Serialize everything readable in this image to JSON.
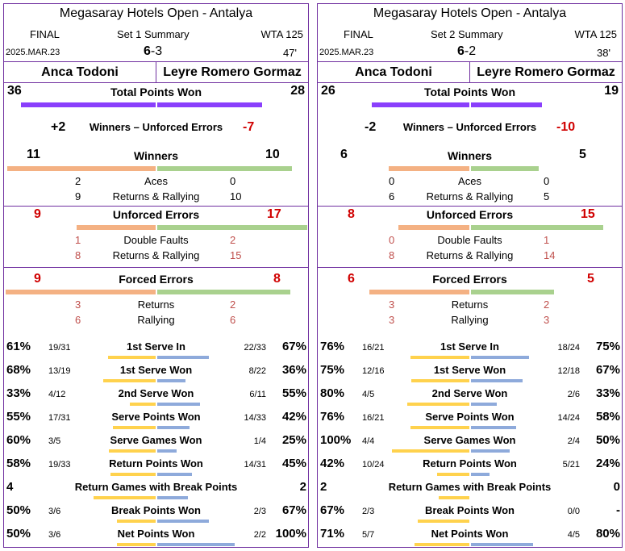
{
  "panels": [
    {
      "title": "Megasaray Hotels Open - Antalya",
      "round": "FINAL",
      "set_label": "Set 1 Summary",
      "tier": "WTA 125",
      "date": "2025.MAR.23",
      "score_p1": "6",
      "score_sep": "-",
      "score_p2": "3",
      "minutes": "47'",
      "player1": "Anca Todoni",
      "player2": "Leyre Romero Gormaz",
      "total_points_label": "Total Points Won",
      "total_points_p1": "36",
      "total_points_p2": "28",
      "winners_ue_label": "Winners – Unforced Errors",
      "winners_ue_p1": "+2",
      "winners_ue_p2": "-7",
      "winners_label": "Winners",
      "winners_p1": "11",
      "winners_p2": "10",
      "aces_label": "Aces",
      "aces_p1": "2",
      "aces_p2": "0",
      "w_rally_label": "Returns & Rallying",
      "w_rally_p1": "9",
      "w_rally_p2": "10",
      "ue_label": "Unforced Errors",
      "ue_p1": "9",
      "ue_p2": "17",
      "df_label": "Double Faults",
      "df_p1": "1",
      "df_p2": "2",
      "ue_rally_label": "Returns & Rallying",
      "ue_rally_p1": "8",
      "ue_rally_p2": "15",
      "fe_label": "Forced Errors",
      "fe_p1": "9",
      "fe_p2": "8",
      "fe_returns_label": "Returns",
      "fe_returns_p1": "3",
      "fe_returns_p2": "2",
      "fe_rally_label": "Rallying",
      "fe_rally_p1": "6",
      "fe_rally_p2": "6",
      "bars": {
        "total_points": [
          36,
          28
        ],
        "winners": [
          11,
          10
        ],
        "ue": [
          9,
          17
        ],
        "fe": [
          9,
          8
        ]
      },
      "stats": [
        {
          "label": "1st Serve In",
          "p1_pct": "61%",
          "p1_frac": "19/31",
          "p2_frac": "22/33",
          "p2_pct": "67%",
          "v1": 0.61,
          "v2": 0.67
        },
        {
          "label": "1st Serve Won",
          "p1_pct": "68%",
          "p1_frac": "13/19",
          "p2_frac": "8/22",
          "p2_pct": "36%",
          "v1": 0.68,
          "v2": 0.36
        },
        {
          "label": "2nd Serve Won",
          "p1_pct": "33%",
          "p1_frac": "4/12",
          "p2_frac": "6/11",
          "p2_pct": "55%",
          "v1": 0.33,
          "v2": 0.55
        },
        {
          "label": "Serve Points Won",
          "p1_pct": "55%",
          "p1_frac": "17/31",
          "p2_frac": "14/33",
          "p2_pct": "42%",
          "v1": 0.55,
          "v2": 0.42
        },
        {
          "label": "Serve Games Won",
          "p1_pct": "60%",
          "p1_frac": "3/5",
          "p2_frac": "1/4",
          "p2_pct": "25%",
          "v1": 0.6,
          "v2": 0.25
        },
        {
          "label": "Return Points Won",
          "p1_pct": "58%",
          "p1_frac": "19/33",
          "p2_frac": "14/31",
          "p2_pct": "45%",
          "v1": 0.58,
          "v2": 0.45
        },
        {
          "label": "Return Games with Break Points",
          "p1_pct": "4",
          "p1_frac": "",
          "p2_frac": "",
          "p2_pct": "2",
          "v1": 0.8,
          "v2": 0.4
        },
        {
          "label": "Break Points Won",
          "p1_pct": "50%",
          "p1_frac": "3/6",
          "p2_frac": "2/3",
          "p2_pct": "67%",
          "v1": 0.5,
          "v2": 0.67
        },
        {
          "label": "Net Points Won",
          "p1_pct": "50%",
          "p1_frac": "3/6",
          "p2_frac": "2/2",
          "p2_pct": "100%",
          "v1": 0.5,
          "v2": 1.0
        }
      ]
    },
    {
      "title": "Megasaray Hotels Open - Antalya",
      "round": "FINAL",
      "set_label": "Set 2 Summary",
      "tier": "WTA 125",
      "date": "2025.MAR.23",
      "score_p1": "6",
      "score_sep": "-",
      "score_p2": "2",
      "minutes": "38'",
      "player1": "Anca Todoni",
      "player2": "Leyre Romero Gormaz",
      "total_points_label": "Total Points Won",
      "total_points_p1": "26",
      "total_points_p2": "19",
      "winners_ue_label": "Winners – Unforced Errors",
      "winners_ue_p1": "-2",
      "winners_ue_p2": "-10",
      "winners_label": "Winners",
      "winners_p1": "6",
      "winners_p2": "5",
      "aces_label": "Aces",
      "aces_p1": "0",
      "aces_p2": "0",
      "w_rally_label": "Returns & Rallying",
      "w_rally_p1": "6",
      "w_rally_p2": "5",
      "ue_label": "Unforced Errors",
      "ue_p1": "8",
      "ue_p2": "15",
      "df_label": "Double Faults",
      "df_p1": "0",
      "df_p2": "1",
      "ue_rally_label": "Returns & Rallying",
      "ue_rally_p1": "8",
      "ue_rally_p2": "14",
      "fe_label": "Forced Errors",
      "fe_p1": "6",
      "fe_p2": "5",
      "fe_returns_label": "Returns",
      "fe_returns_p1": "3",
      "fe_returns_p2": "2",
      "fe_rally_label": "Rallying",
      "fe_rally_p1": "3",
      "fe_rally_p2": "3",
      "bars": {
        "total_points": [
          26,
          19
        ],
        "winners": [
          6,
          5
        ],
        "ue": [
          8,
          15
        ],
        "fe": [
          6,
          5
        ]
      },
      "stats": [
        {
          "label": "1st Serve In",
          "p1_pct": "76%",
          "p1_frac": "16/21",
          "p2_frac": "18/24",
          "p2_pct": "75%",
          "v1": 0.76,
          "v2": 0.75
        },
        {
          "label": "1st Serve Won",
          "p1_pct": "75%",
          "p1_frac": "12/16",
          "p2_frac": "12/18",
          "p2_pct": "67%",
          "v1": 0.75,
          "v2": 0.67
        },
        {
          "label": "2nd Serve Won",
          "p1_pct": "80%",
          "p1_frac": "4/5",
          "p2_frac": "2/6",
          "p2_pct": "33%",
          "v1": 0.8,
          "v2": 0.33
        },
        {
          "label": "Serve Points Won",
          "p1_pct": "76%",
          "p1_frac": "16/21",
          "p2_frac": "14/24",
          "p2_pct": "58%",
          "v1": 0.76,
          "v2": 0.58
        },
        {
          "label": "Serve Games Won",
          "p1_pct": "100%",
          "p1_frac": "4/4",
          "p2_frac": "2/4",
          "p2_pct": "50%",
          "v1": 1.0,
          "v2": 0.5
        },
        {
          "label": "Return Points Won",
          "p1_pct": "42%",
          "p1_frac": "10/24",
          "p2_frac": "5/21",
          "p2_pct": "24%",
          "v1": 0.42,
          "v2": 0.24
        },
        {
          "label": "Return Games with Break Points",
          "p1_pct": "2",
          "p1_frac": "",
          "p2_frac": "",
          "p2_pct": "0",
          "v1": 0.4,
          "v2": 0.0
        },
        {
          "label": "Break Points Won",
          "p1_pct": "67%",
          "p1_frac": "2/3",
          "p2_frac": "0/0",
          "p2_pct": "-",
          "v1": 0.67,
          "v2": 0.0
        },
        {
          "label": "Net Points Won",
          "p1_pct": "71%",
          "p1_frac": "5/7",
          "p2_frac": "4/5",
          "p2_pct": "80%",
          "v1": 0.71,
          "v2": 0.8
        }
      ]
    }
  ]
}
